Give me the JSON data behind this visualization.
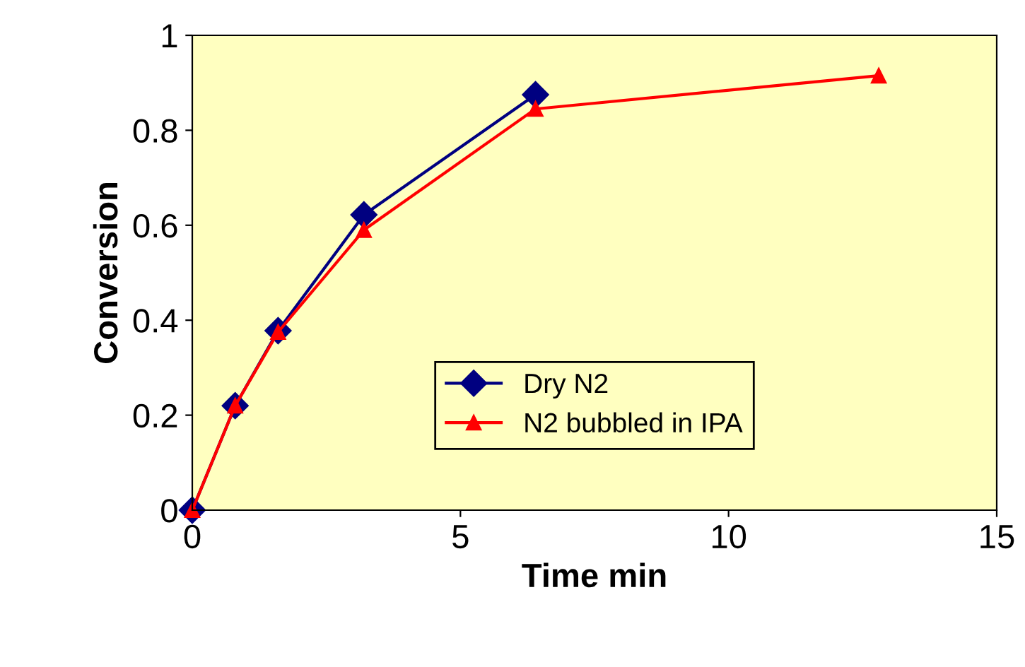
{
  "chart_data": {
    "type": "line",
    "xlabel": "Time min",
    "ylabel": "Conversion",
    "xlim": [
      0,
      15
    ],
    "ylim": [
      0,
      1
    ],
    "xticks": [
      0,
      5,
      10,
      15
    ],
    "yticks": [
      0,
      0.2,
      0.4,
      0.6,
      0.8,
      1
    ],
    "grid": false,
    "legend": "bottom",
    "line_style": "solid",
    "series": [
      {
        "name": "Dry N2",
        "color": "#000080",
        "marker": "diamond",
        "x": [
          0,
          0.8,
          1.6,
          3.2,
          6.4
        ],
        "values": [
          0,
          0.22,
          0.378,
          0.622,
          0.875
        ]
      },
      {
        "name": "N2 bubbled in IPA",
        "color": "#ff0000",
        "marker": "triangle",
        "x": [
          0,
          0.8,
          1.6,
          3.2,
          6.4,
          12.8
        ],
        "values": [
          0,
          0.22,
          0.375,
          0.59,
          0.845,
          0.915
        ]
      }
    ]
  }
}
